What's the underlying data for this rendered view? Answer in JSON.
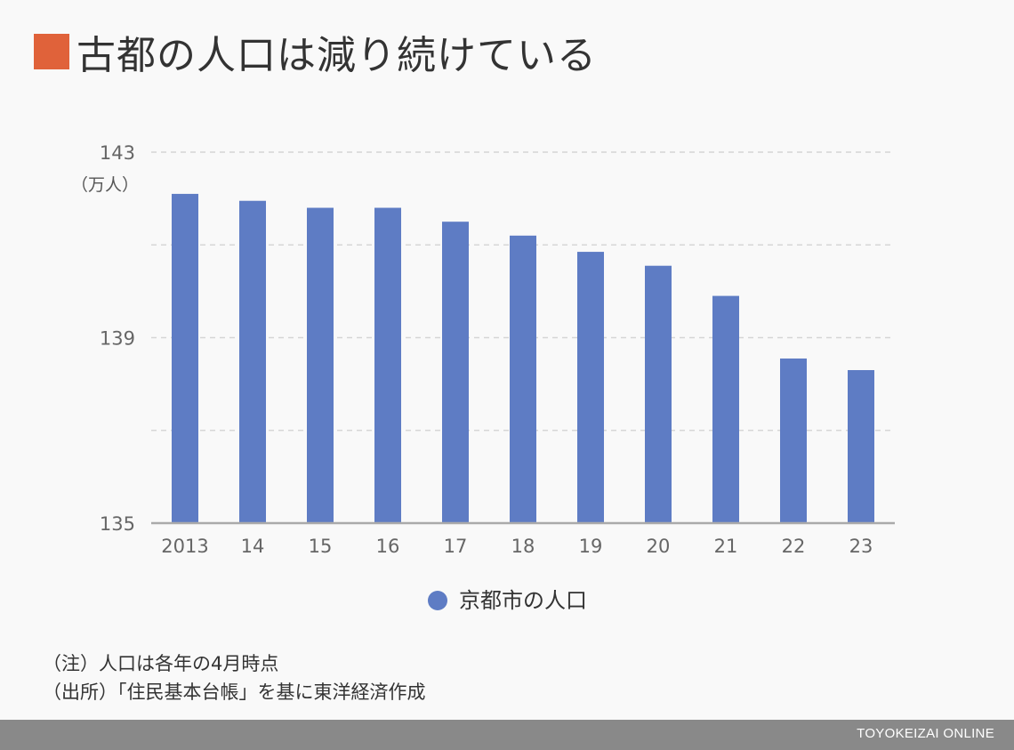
{
  "title": "古都の人口は減り続けている",
  "colors": {
    "title_marker": "#e0623a",
    "bar": "#5e7cc4",
    "gridline": "#d6d6d6",
    "axis": "#aaaaaa",
    "footer": "#898989"
  },
  "chart_data": {
    "type": "bar",
    "categories": [
      "2013",
      "14",
      "15",
      "16",
      "17",
      "18",
      "19",
      "20",
      "21",
      "22",
      "23"
    ],
    "series": [
      {
        "name": "京都市の人口",
        "values": [
          142.1,
          141.95,
          141.8,
          141.8,
          141.5,
          141.2,
          140.85,
          140.55,
          139.9,
          138.55,
          138.3
        ]
      }
    ],
    "unit_label": "（万人）",
    "yticks_labeled": [
      135,
      139,
      143
    ],
    "ygrid": [
      137,
      139,
      141,
      143
    ],
    "ylim": [
      135,
      143
    ],
    "grid": true,
    "legend_position": "bottom-center"
  },
  "notes": [
    "（注）人口は各年の4月時点",
    "（出所）「住民基本台帳」を基に東洋経済作成"
  ],
  "footer": {
    "brand": "TOYOKEIZAI ONLINE"
  }
}
